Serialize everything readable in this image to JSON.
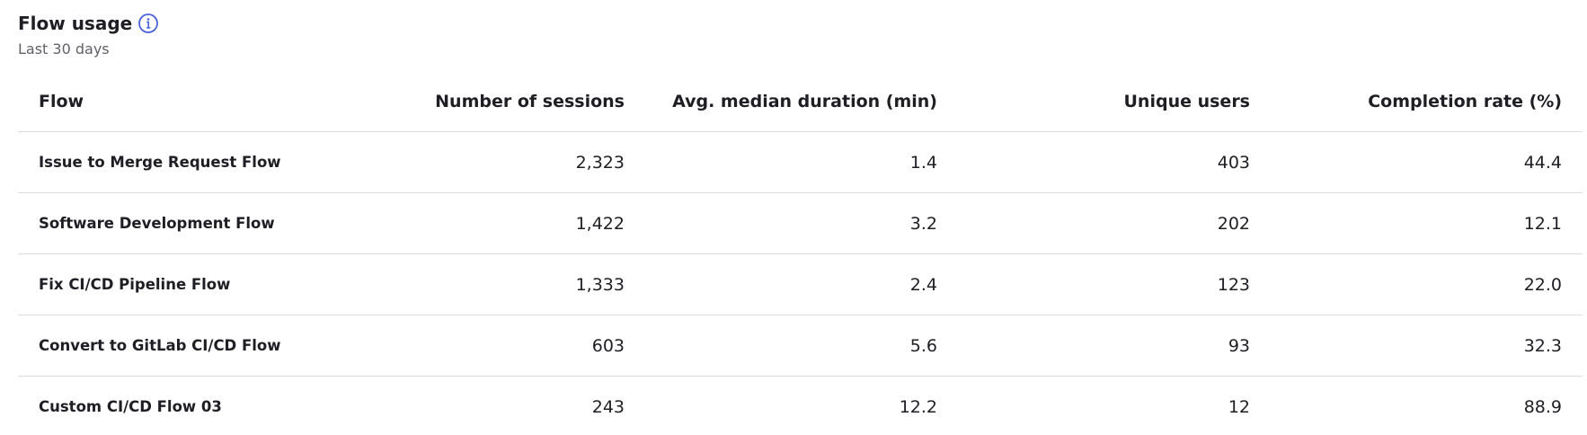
{
  "header": {
    "title": "Flow usage",
    "subtitle": "Last 30 days"
  },
  "table": {
    "columns": [
      "Flow",
      "Number of sessions",
      "Avg. median duration (min)",
      "Unique users",
      "Completion rate (%)"
    ],
    "rows": [
      [
        "Issue to Merge Request Flow",
        "2,323",
        "1.4",
        "403",
        "44.4"
      ],
      [
        "Software Development Flow",
        "1,422",
        "3.2",
        "202",
        "12.1"
      ],
      [
        "Fix CI/CD Pipeline Flow",
        "1,333",
        "2.4",
        "123",
        "22.0"
      ],
      [
        "Convert to GitLab CI/CD Flow",
        "603",
        "5.6",
        "93",
        "32.3"
      ],
      [
        "Custom CI/CD Flow 03",
        "243",
        "12.2",
        "12",
        "88.9"
      ]
    ]
  }
}
